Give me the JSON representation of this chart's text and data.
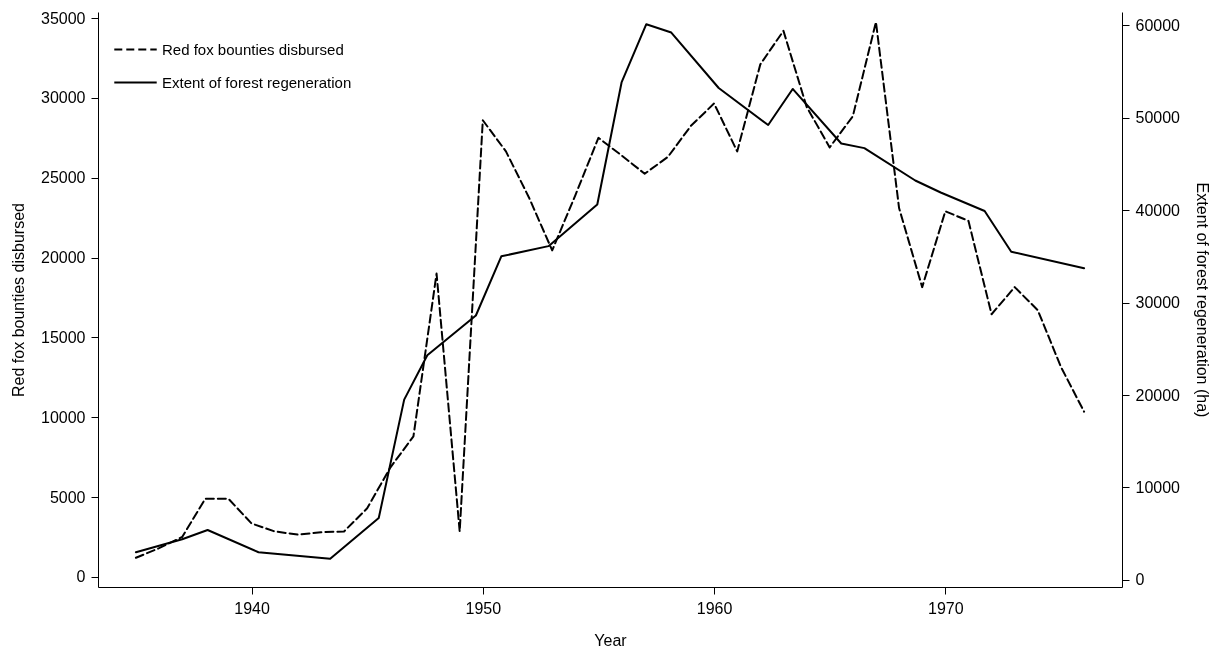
{
  "chart_data": {
    "type": "line",
    "xlabel": "Year",
    "ylabel": "Red fox bounties disbursed",
    "y2label": "Extent of forest regeneration (ha)",
    "xlim": [
      1933.36,
      1977.64
    ],
    "xticks": [
      1940,
      1950,
      1960,
      1970
    ],
    "ylim": [
      -630,
      35380
    ],
    "yticks": [
      0,
      5000,
      10000,
      15000,
      20000,
      25000,
      30000,
      35000
    ],
    "y2lim": [
      -760,
      61420
    ],
    "y2ticks": [
      0,
      10000,
      20000,
      30000,
      40000,
      50000,
      60000
    ],
    "legend": "top left",
    "grid": false,
    "series": [
      {
        "name": "Red fox bounties disbursed",
        "color": "#000000",
        "line_style": "dashed",
        "x": [
          1935,
          1936,
          1937,
          1938,
          1939,
          1940,
          1941,
          1942,
          1943,
          1944,
          1945,
          1946,
          1947,
          1948,
          1949,
          1950,
          1951,
          1952,
          1953,
          1954,
          1955,
          1956,
          1957,
          1958,
          1959,
          1960,
          1961,
          1962,
          1963,
          1964,
          1965,
          1966,
          1967,
          1968,
          1969,
          1970,
          1971,
          1972,
          1973,
          1974,
          1975,
          1976
        ],
        "values": [
          1200,
          1800,
          2500,
          4900,
          4900,
          3350,
          2850,
          2650,
          2800,
          2850,
          4300,
          6850,
          8800,
          19000,
          2850,
          28600,
          26650,
          23750,
          20450,
          23900,
          27500,
          26400,
          25250,
          26300,
          28250,
          29650,
          26650,
          32100,
          34200,
          29450,
          26900,
          28850,
          34750,
          23100,
          18150,
          22900,
          22300,
          16450,
          18150,
          16700,
          13150,
          10350
        ]
      },
      {
        "name": "Extent of forest regeneration",
        "color": "#000000",
        "line_style": "solid",
        "axis": "y2",
        "x": [
          1935,
          1937,
          1938.1,
          1940.3,
          1943.4,
          1945.5,
          1946.6,
          1947.6,
          1949.7,
          1950.8,
          1952.84,
          1954.95,
          1956,
          1957.07,
          1958.15,
          1960.2,
          1962.34,
          1963.4,
          1965.5,
          1966.5,
          1968.7,
          1969.8,
          1971.7,
          1972.85,
          1976
        ],
        "values": [
          3000,
          4400,
          5400,
          3000,
          2300,
          6700,
          19500,
          24300,
          28600,
          35000,
          36100,
          40600,
          53800,
          60100,
          59200,
          53200,
          49200,
          53100,
          47200,
          46700,
          43200,
          41900,
          39900,
          35500,
          33700
        ]
      }
    ]
  }
}
